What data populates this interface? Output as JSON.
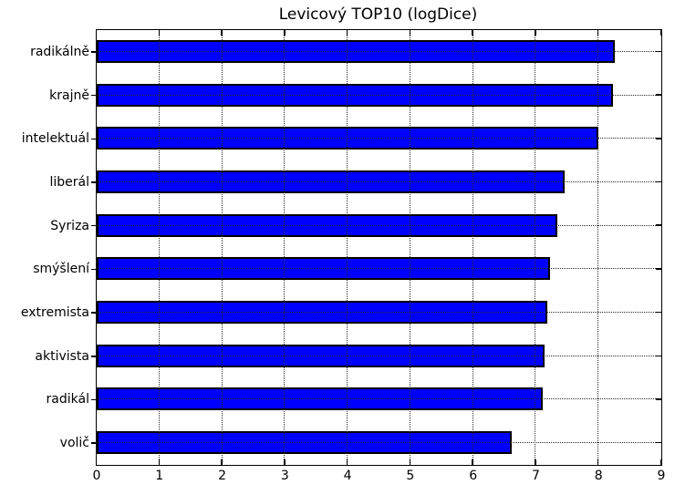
{
  "chart_data": {
    "type": "bar",
    "orientation": "horizontal",
    "title": "Levicový TOP10 (logDice)",
    "categories": [
      "radikálně",
      "krajně",
      "intelektuál",
      "liberál",
      "Syriza",
      "smýšlení",
      "extremista",
      "aktivista",
      "radikál",
      "volič"
    ],
    "values": [
      8.27,
      8.24,
      8.0,
      7.46,
      7.35,
      7.23,
      7.19,
      7.15,
      7.11,
      6.62
    ],
    "xlabel": "",
    "ylabel": "",
    "xlim": [
      0,
      9
    ],
    "xticks": [
      0,
      1,
      2,
      3,
      4,
      5,
      6,
      7,
      8,
      9
    ],
    "grid": true,
    "grid_style": "dotted",
    "legend": false,
    "bar_color": "#0000ff",
    "bar_edge_color": "#000000",
    "background_color": "#ffffff"
  }
}
